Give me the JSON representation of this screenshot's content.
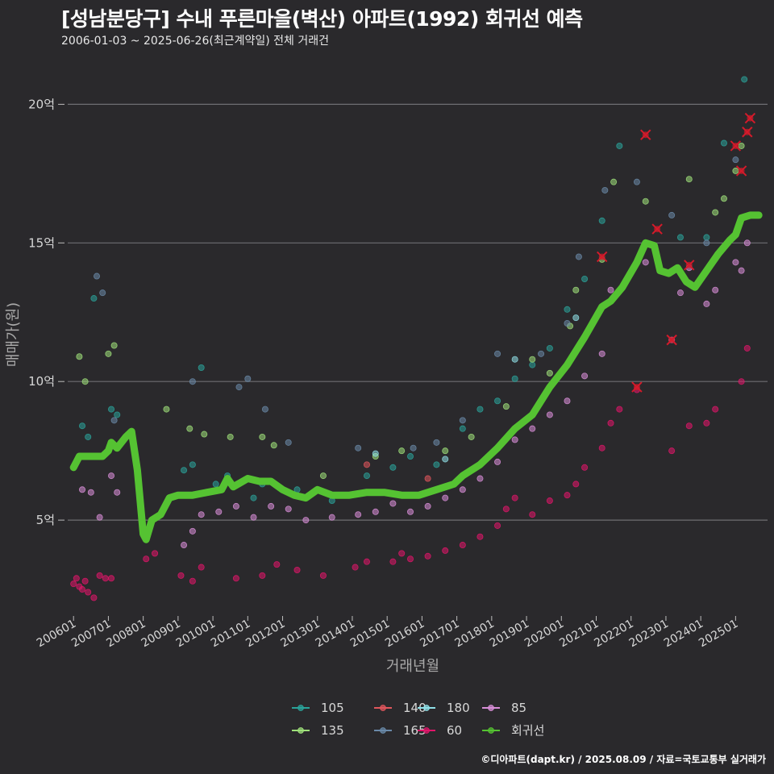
{
  "title": "[성남분당구] 수내 푸른마을(벽산) 아파트(1992) 회귀선 예측",
  "subtitle": "2006-01-03 ~ 2025-06-26(최근계약일) 전체 거래건",
  "caption": "©디아파트(dapt.kr) / 2025.08.09 / 자료=국토교통부 실거래가",
  "colors": {
    "background": "#2a292c",
    "grid": "#6e6e72",
    "105": "#2aa39a",
    "135": "#9ee07a",
    "140": "#e0565c",
    "165": "#6a89a8",
    "180": "#8fe0e8",
    "60": "#e0156a",
    "85": "#d88ed8",
    "regression": "#55c232",
    "outlier": "#d41a2a"
  },
  "chart_data": {
    "type": "scatter",
    "title": "[성남분당구] 수내 푸른마을(벽산) 아파트(1992) 회귀선 예측",
    "xlabel": "거래년월",
    "ylabel": "매매가(원)",
    "x_ticks": [
      "200601",
      "200701",
      "200801",
      "200901",
      "201001",
      "201101",
      "201201",
      "201301",
      "201401",
      "201501",
      "201601",
      "201701",
      "201801",
      "201901",
      "202001",
      "202101",
      "202201",
      "202301",
      "202401",
      "202501"
    ],
    "x_range": [
      "2005-11",
      "2025-12"
    ],
    "y_ticks": [
      {
        "value": 5,
        "label": "5억"
      },
      {
        "value": 10,
        "label": "10억"
      },
      {
        "value": 15,
        "label": "15억"
      },
      {
        "value": 20,
        "label": "20억"
      }
    ],
    "y_range": [
      1.6,
      21.0
    ],
    "grid": "horizontal",
    "legend_position": "bottom",
    "legend": [
      "105",
      "135",
      "140",
      "165",
      "180",
      "60",
      "85",
      "회귀선"
    ],
    "series": [
      {
        "name": "105",
        "points": [
          [
            "2006-04",
            8.4
          ],
          [
            "2006-06",
            8.0
          ],
          [
            "2006-08",
            13.0
          ],
          [
            "2007-02",
            9.0
          ],
          [
            "2007-04",
            8.8
          ],
          [
            "2009-03",
            6.8
          ],
          [
            "2009-06",
            7.0
          ],
          [
            "2009-09",
            10.5
          ],
          [
            "2010-02",
            6.3
          ],
          [
            "2010-06",
            6.6
          ],
          [
            "2011-03",
            5.8
          ],
          [
            "2011-06",
            6.3
          ],
          [
            "2012-06",
            6.1
          ],
          [
            "2013-06",
            5.7
          ],
          [
            "2014-06",
            6.6
          ],
          [
            "2015-03",
            6.9
          ],
          [
            "2015-09",
            7.3
          ],
          [
            "2016-06",
            7.0
          ],
          [
            "2017-03",
            8.3
          ],
          [
            "2017-09",
            9.0
          ],
          [
            "2018-03",
            9.3
          ],
          [
            "2018-09",
            10.1
          ],
          [
            "2019-03",
            10.6
          ],
          [
            "2019-09",
            11.2
          ],
          [
            "2020-03",
            12.6
          ],
          [
            "2020-09",
            13.7
          ],
          [
            "2021-03",
            15.8
          ],
          [
            "2021-09",
            18.5
          ],
          [
            "2023-06",
            15.2
          ],
          [
            "2024-03",
            15.2
          ],
          [
            "2024-09",
            18.6
          ],
          [
            "2025-04",
            20.9
          ]
        ]
      },
      {
        "name": "135",
        "points": [
          [
            "2006-03",
            10.9
          ],
          [
            "2006-05",
            10.0
          ],
          [
            "2007-01",
            11.0
          ],
          [
            "2007-03",
            11.3
          ],
          [
            "2008-09",
            9.0
          ],
          [
            "2009-05",
            8.3
          ],
          [
            "2009-10",
            8.1
          ],
          [
            "2010-07",
            8.0
          ],
          [
            "2011-06",
            8.0
          ],
          [
            "2011-10",
            7.7
          ],
          [
            "2013-03",
            6.6
          ],
          [
            "2014-09",
            7.3
          ],
          [
            "2015-06",
            7.5
          ],
          [
            "2016-09",
            7.5
          ],
          [
            "2017-06",
            8.0
          ],
          [
            "2018-06",
            9.1
          ],
          [
            "2019-03",
            10.8
          ],
          [
            "2019-09",
            10.3
          ],
          [
            "2020-04",
            12.0
          ],
          [
            "2020-06",
            13.3
          ],
          [
            "2021-03",
            14.4
          ],
          [
            "2021-07",
            17.2
          ],
          [
            "2022-06",
            16.5
          ],
          [
            "2023-09",
            17.3
          ],
          [
            "2024-06",
            16.1
          ],
          [
            "2024-09",
            16.6
          ],
          [
            "2025-01",
            17.6
          ],
          [
            "2025-03",
            18.5
          ]
        ]
      },
      {
        "name": "140",
        "points": [
          [
            "2014-06",
            7.0
          ],
          [
            "2016-03",
            6.5
          ]
        ]
      },
      {
        "name": "165",
        "points": [
          [
            "2006-09",
            13.8
          ],
          [
            "2006-11",
            13.2
          ],
          [
            "2007-03",
            8.6
          ],
          [
            "2009-06",
            10.0
          ],
          [
            "2010-10",
            9.8
          ],
          [
            "2011-01",
            10.1
          ],
          [
            "2011-07",
            9.0
          ],
          [
            "2012-03",
            7.8
          ],
          [
            "2014-03",
            7.6
          ],
          [
            "2015-10",
            7.6
          ],
          [
            "2016-06",
            7.8
          ],
          [
            "2017-03",
            8.6
          ],
          [
            "2018-03",
            11.0
          ],
          [
            "2019-06",
            11.0
          ],
          [
            "2020-03",
            12.1
          ],
          [
            "2020-07",
            14.5
          ],
          [
            "2021-04",
            16.9
          ],
          [
            "2022-03",
            17.2
          ],
          [
            "2023-03",
            16.0
          ],
          [
            "2024-03",
            15.0
          ],
          [
            "2025-01",
            18.0
          ]
        ]
      },
      {
        "name": "180",
        "points": [
          [
            "2014-09",
            7.4
          ],
          [
            "2016-09",
            7.2
          ],
          [
            "2018-09",
            10.8
          ],
          [
            "2020-06",
            12.3
          ]
        ]
      },
      {
        "name": "60",
        "points": [
          [
            "2006-01",
            2.7
          ],
          [
            "2006-02",
            2.9
          ],
          [
            "2006-03",
            2.6
          ],
          [
            "2006-04",
            2.5
          ],
          [
            "2006-05",
            2.8
          ],
          [
            "2006-06",
            2.4
          ],
          [
            "2006-08",
            2.2
          ],
          [
            "2006-10",
            3.0
          ],
          [
            "2006-12",
            2.9
          ],
          [
            "2007-02",
            2.9
          ],
          [
            "2008-02",
            3.6
          ],
          [
            "2008-05",
            3.8
          ],
          [
            "2009-02",
            3.0
          ],
          [
            "2009-06",
            2.8
          ],
          [
            "2009-09",
            3.3
          ],
          [
            "2010-09",
            2.9
          ],
          [
            "2011-06",
            3.0
          ],
          [
            "2011-11",
            3.4
          ],
          [
            "2012-06",
            3.2
          ],
          [
            "2013-03",
            3.0
          ],
          [
            "2014-02",
            3.3
          ],
          [
            "2014-06",
            3.5
          ],
          [
            "2015-03",
            3.5
          ],
          [
            "2015-06",
            3.8
          ],
          [
            "2015-09",
            3.6
          ],
          [
            "2016-03",
            3.7
          ],
          [
            "2016-09",
            3.9
          ],
          [
            "2017-03",
            4.1
          ],
          [
            "2017-09",
            4.4
          ],
          [
            "2018-03",
            4.8
          ],
          [
            "2018-06",
            5.4
          ],
          [
            "2018-09",
            5.8
          ],
          [
            "2019-03",
            5.2
          ],
          [
            "2019-09",
            5.7
          ],
          [
            "2020-03",
            5.9
          ],
          [
            "2020-06",
            6.3
          ],
          [
            "2020-09",
            6.9
          ],
          [
            "2021-03",
            7.6
          ],
          [
            "2021-06",
            8.5
          ],
          [
            "2021-09",
            9.0
          ],
          [
            "2022-03",
            9.7
          ],
          [
            "2023-03",
            7.5
          ],
          [
            "2023-09",
            8.4
          ],
          [
            "2024-03",
            8.5
          ],
          [
            "2024-06",
            9.0
          ],
          [
            "2025-03",
            10.0
          ],
          [
            "2025-05",
            11.2
          ]
        ]
      },
      {
        "name": "85",
        "points": [
          [
            "2006-04",
            6.1
          ],
          [
            "2006-07",
            6.0
          ],
          [
            "2006-10",
            5.1
          ],
          [
            "2007-02",
            6.6
          ],
          [
            "2007-04",
            6.0
          ],
          [
            "2009-03",
            4.1
          ],
          [
            "2009-06",
            4.6
          ],
          [
            "2009-09",
            5.2
          ],
          [
            "2010-03",
            5.3
          ],
          [
            "2010-09",
            5.5
          ],
          [
            "2011-03",
            5.1
          ],
          [
            "2011-09",
            5.5
          ],
          [
            "2012-03",
            5.4
          ],
          [
            "2012-09",
            5.0
          ],
          [
            "2013-06",
            5.1
          ],
          [
            "2014-03",
            5.2
          ],
          [
            "2014-09",
            5.3
          ],
          [
            "2015-03",
            5.6
          ],
          [
            "2015-09",
            5.3
          ],
          [
            "2016-03",
            5.5
          ],
          [
            "2016-09",
            5.8
          ],
          [
            "2017-03",
            6.1
          ],
          [
            "2017-09",
            6.5
          ],
          [
            "2018-03",
            7.1
          ],
          [
            "2018-09",
            7.9
          ],
          [
            "2019-03",
            8.3
          ],
          [
            "2019-09",
            8.8
          ],
          [
            "2020-03",
            9.3
          ],
          [
            "2020-09",
            10.2
          ],
          [
            "2021-03",
            11.0
          ],
          [
            "2021-06",
            13.3
          ],
          [
            "2022-06",
            14.3
          ],
          [
            "2023-03",
            11.5
          ],
          [
            "2023-06",
            13.2
          ],
          [
            "2023-09",
            14.1
          ],
          [
            "2024-03",
            12.8
          ],
          [
            "2024-06",
            13.3
          ],
          [
            "2025-01",
            14.3
          ],
          [
            "2025-03",
            14.0
          ],
          [
            "2025-05",
            15.0
          ]
        ]
      },
      {
        "name": "회귀선",
        "line": true,
        "points": [
          [
            "2006-01",
            6.9
          ],
          [
            "2006-02",
            7.1
          ],
          [
            "2006-03",
            7.3
          ],
          [
            "2006-07",
            7.3
          ],
          [
            "2006-11",
            7.3
          ],
          [
            "2007-01",
            7.5
          ],
          [
            "2007-02",
            7.8
          ],
          [
            "2007-04",
            7.6
          ],
          [
            "2007-07",
            8.0
          ],
          [
            "2007-09",
            8.2
          ],
          [
            "2007-11",
            6.8
          ],
          [
            "2008-01",
            4.5
          ],
          [
            "2008-02",
            4.3
          ],
          [
            "2008-04",
            5.0
          ],
          [
            "2008-07",
            5.2
          ],
          [
            "2008-10",
            5.8
          ],
          [
            "2009-01",
            5.9
          ],
          [
            "2009-06",
            5.9
          ],
          [
            "2009-11",
            6.0
          ],
          [
            "2010-04",
            6.1
          ],
          [
            "2010-06",
            6.5
          ],
          [
            "2010-08",
            6.2
          ],
          [
            "2011-01",
            6.5
          ],
          [
            "2011-05",
            6.4
          ],
          [
            "2011-09",
            6.4
          ],
          [
            "2012-01",
            6.1
          ],
          [
            "2012-05",
            5.9
          ],
          [
            "2012-09",
            5.8
          ],
          [
            "2013-01",
            6.1
          ],
          [
            "2013-06",
            5.9
          ],
          [
            "2013-12",
            5.9
          ],
          [
            "2014-06",
            6.0
          ],
          [
            "2014-12",
            6.0
          ],
          [
            "2015-06",
            5.9
          ],
          [
            "2015-12",
            5.9
          ],
          [
            "2016-06",
            6.1
          ],
          [
            "2016-12",
            6.3
          ],
          [
            "2017-03",
            6.6
          ],
          [
            "2017-09",
            7.0
          ],
          [
            "2018-03",
            7.6
          ],
          [
            "2018-09",
            8.3
          ],
          [
            "2019-03",
            8.8
          ],
          [
            "2019-09",
            9.8
          ],
          [
            "2020-03",
            10.6
          ],
          [
            "2020-09",
            11.6
          ],
          [
            "2021-03",
            12.7
          ],
          [
            "2021-06",
            12.9
          ],
          [
            "2021-10",
            13.4
          ],
          [
            "2022-03",
            14.3
          ],
          [
            "2022-06",
            15.0
          ],
          [
            "2022-09",
            14.9
          ],
          [
            "2022-11",
            14.0
          ],
          [
            "2023-02",
            13.9
          ],
          [
            "2023-05",
            14.1
          ],
          [
            "2023-08",
            13.6
          ],
          [
            "2023-11",
            13.4
          ],
          [
            "2024-03",
            14.0
          ],
          [
            "2024-07",
            14.6
          ],
          [
            "2024-11",
            15.1
          ],
          [
            "2025-01",
            15.3
          ],
          [
            "2025-03",
            15.9
          ],
          [
            "2025-06",
            16.0
          ],
          [
            "2025-09",
            16.0
          ]
        ]
      },
      {
        "name": "outliers",
        "points": [
          [
            "2021-03",
            14.5
          ],
          [
            "2022-03",
            9.8
          ],
          [
            "2022-06",
            18.9
          ],
          [
            "2022-10",
            15.5
          ],
          [
            "2023-03",
            11.5
          ],
          [
            "2023-09",
            14.2
          ],
          [
            "2025-01",
            18.5
          ],
          [
            "2025-03",
            17.6
          ],
          [
            "2025-05",
            19.0
          ],
          [
            "2025-06",
            19.5
          ]
        ]
      }
    ]
  }
}
